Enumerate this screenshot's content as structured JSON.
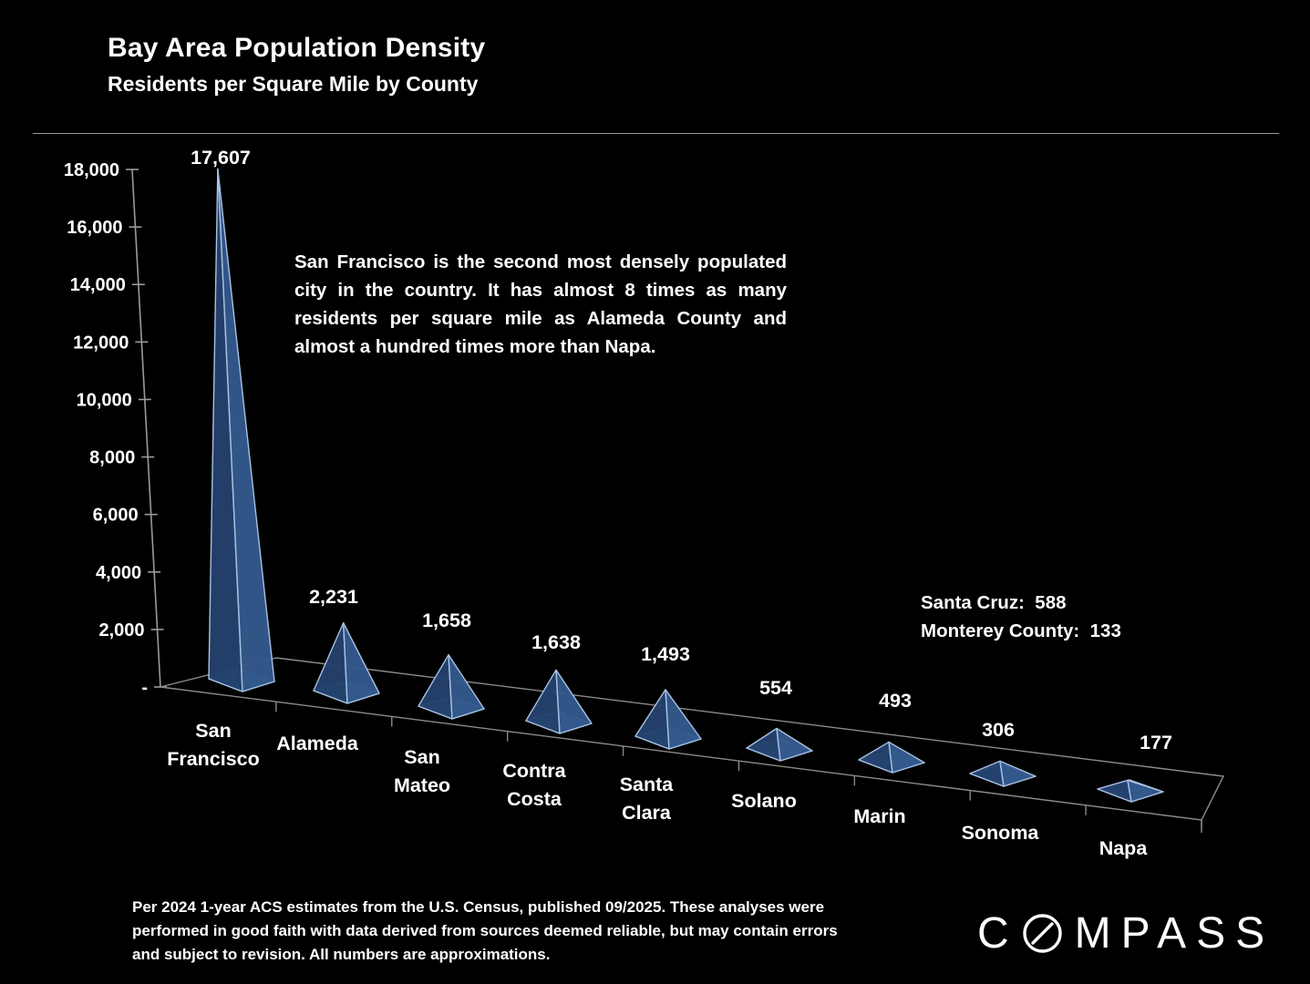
{
  "title": "Bay Area Population Density",
  "subtitle": "Residents per Square Mile by County",
  "annotation": "San Francisco is the second most densely populated city in the country. It has almost 8 times as many residents per square mile as Alameda County and almost a hundred times more than Napa.",
  "side_note": {
    "line1": "Santa Cruz:  588",
    "line2": "Monterey County:  133"
  },
  "footer": "Per 2024 1-year ACS estimates from the U.S. Census, published 09/2025. These analyses were performed in good faith with data derived from sources deemed reliable, but may contain errors and subject to revision. All numbers are approximations.",
  "logo": {
    "first": "C",
    "rest": "MPASS"
  },
  "chart_data": {
    "type": "bar",
    "style": "3d-pyramid",
    "title": "Bay Area Population Density",
    "subtitle": "Residents per Square Mile by County",
    "xlabel": "",
    "ylabel": "",
    "categories": [
      "San Francisco",
      "Alameda",
      "San Mateo",
      "Contra Costa",
      "Santa Clara",
      "Solano",
      "Marin",
      "Sonoma",
      "Napa"
    ],
    "values": [
      17607,
      2231,
      1658,
      1638,
      1493,
      554,
      493,
      306,
      177
    ],
    "value_labels": [
      "17,607",
      "2,231",
      "1,658",
      "1,638",
      "1,493",
      "554",
      "493",
      "306",
      "177"
    ],
    "y_ticks": [
      "18,000",
      "16,000",
      "14,000",
      "12,000",
      "10,000",
      "8,000",
      "6,000",
      "4,000",
      "2,000",
      "-"
    ],
    "ylim": [
      0,
      18000
    ],
    "grid": false,
    "legend": false,
    "additional_values": {
      "Santa Cruz": 588,
      "Monterey County": 133
    },
    "colors": {
      "background": "#000000",
      "pyramid_left_face": "#24426d",
      "pyramid_right_face": "#33588c",
      "pyramid_base": "#2b4c7c",
      "pyramid_edge": "#a8c2e2",
      "axis_line": "#9a9a9a",
      "floor_line": "#8a8a8a",
      "text": "#ffffff"
    }
  }
}
